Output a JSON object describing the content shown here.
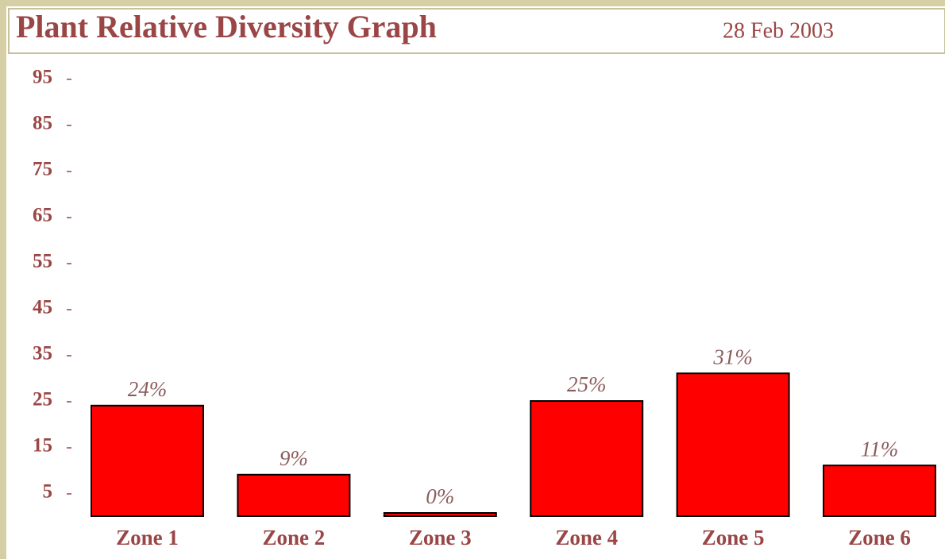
{
  "chart_data": {
    "type": "bar",
    "title": "Plant Relative Diversity Graph",
    "subtitle": "28 Feb 2003",
    "categories": [
      "Zone 1",
      "Zone 2",
      "Zone 3",
      "Zone 4",
      "Zone 5",
      "Zone 6"
    ],
    "values": [
      24,
      9,
      0,
      25,
      31,
      11
    ],
    "value_labels": [
      "24%",
      "9%",
      "0%",
      "25%",
      "31%",
      "11%"
    ],
    "color": "#ff0000",
    "ylim": [
      0,
      100
    ],
    "yticks": [
      5,
      15,
      25,
      35,
      45,
      55,
      65,
      75,
      85,
      95
    ],
    "grid": false
  }
}
